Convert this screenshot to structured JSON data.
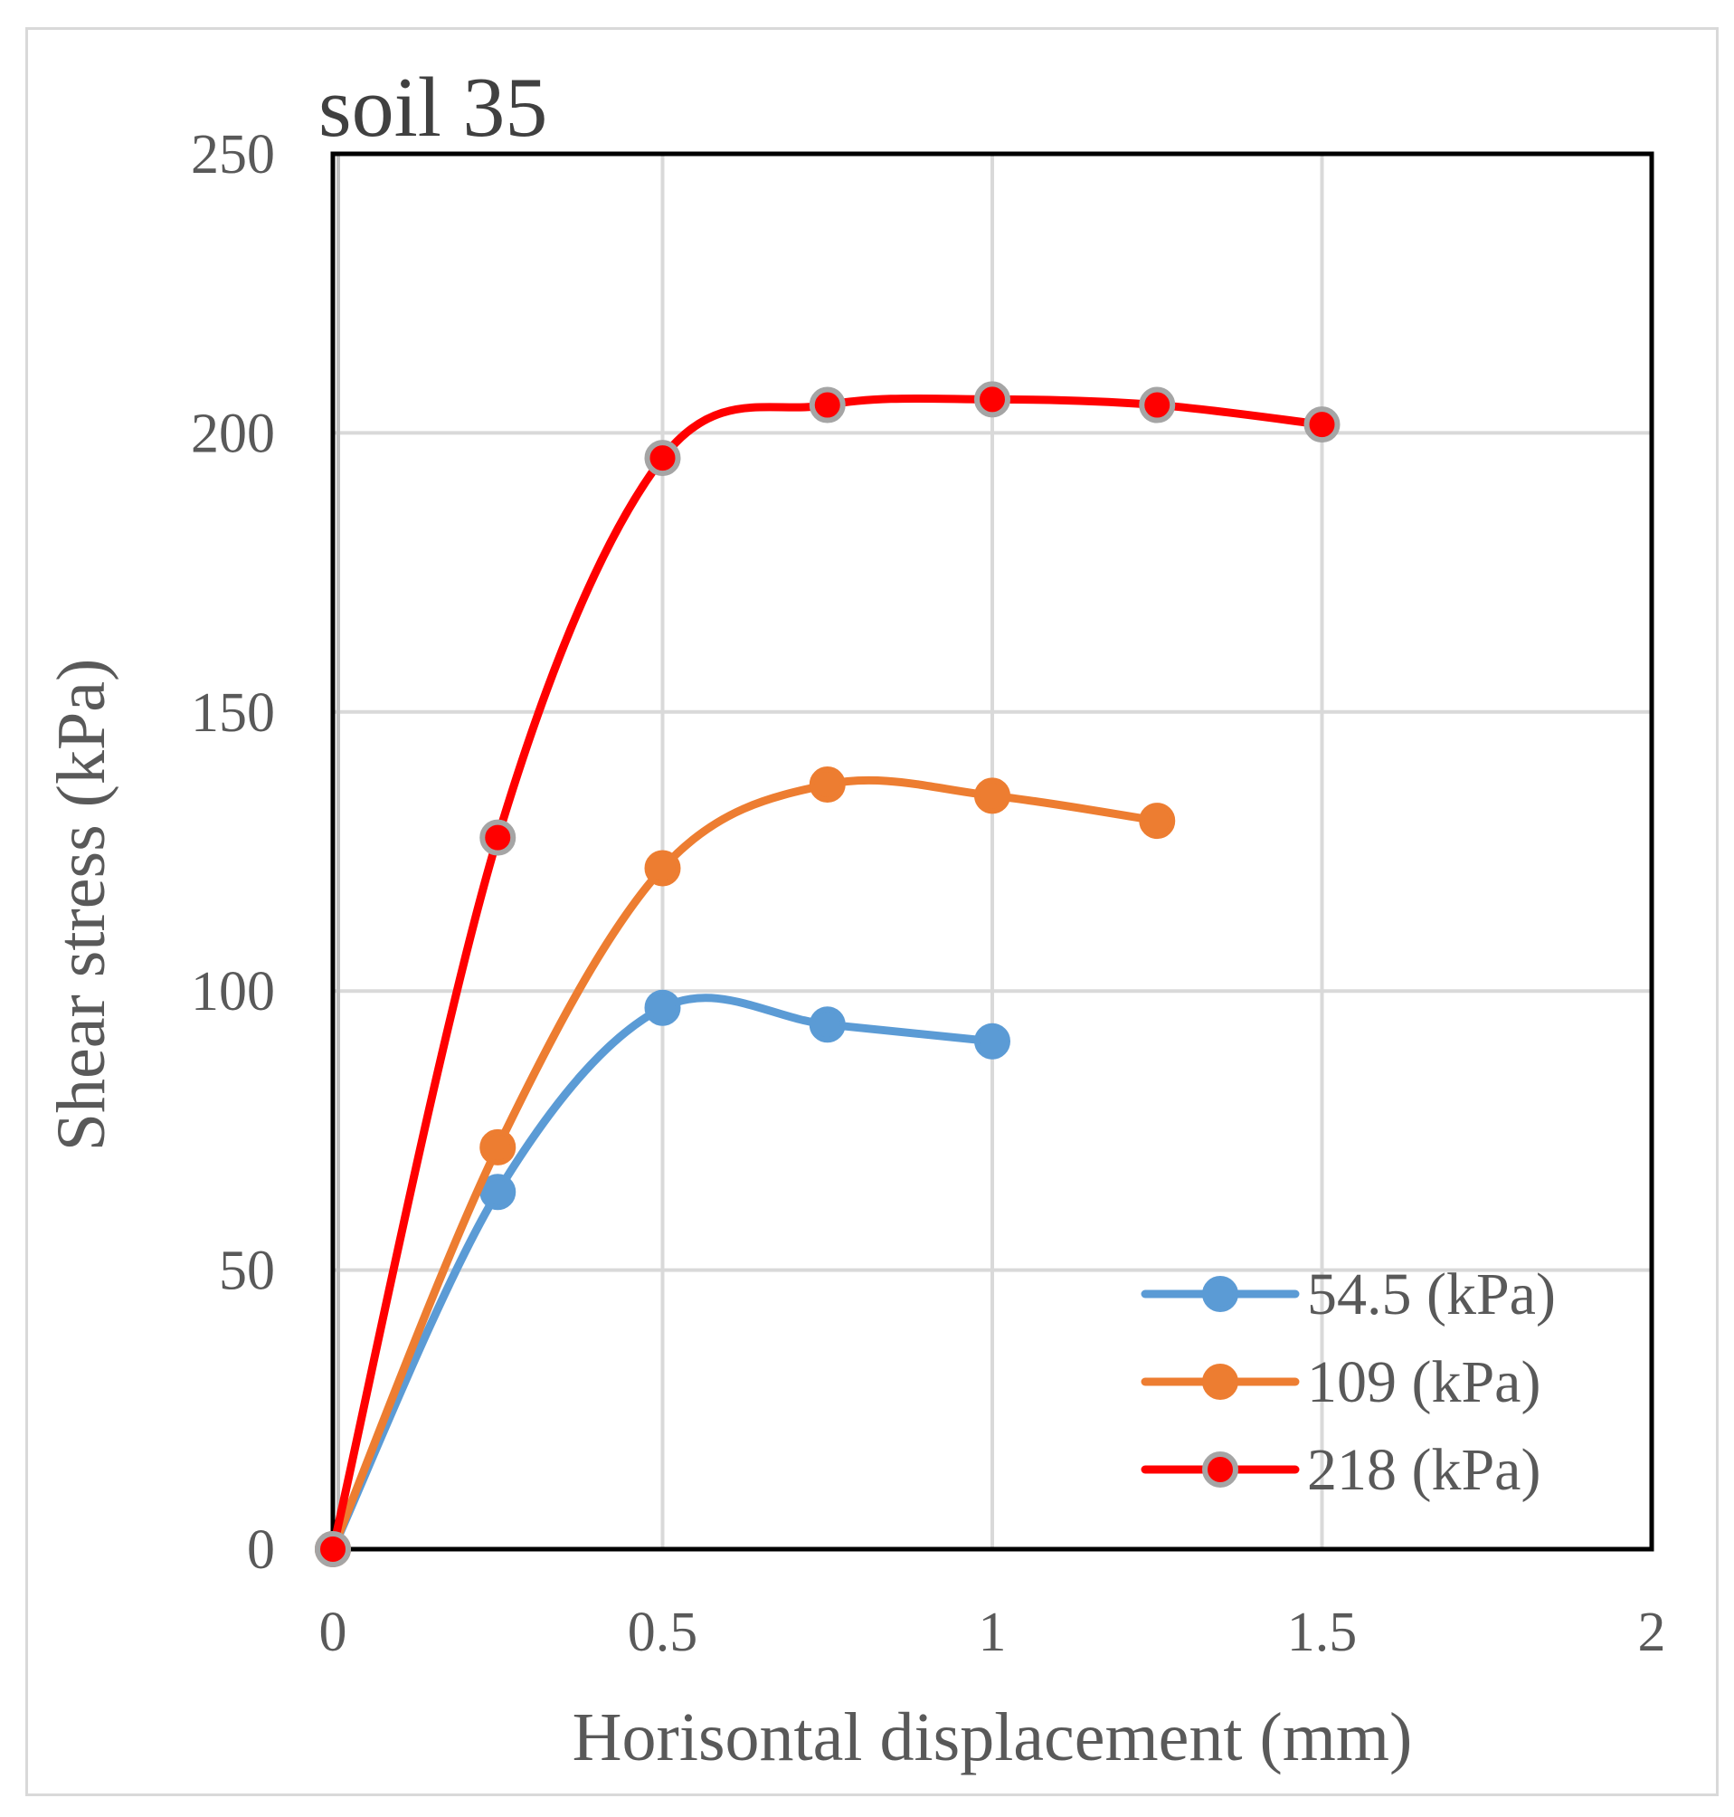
{
  "chart_data": {
    "type": "line",
    "title": "soil 35",
    "xlabel": "Horisontal displacement (mm)",
    "ylabel": "Shear stress (kPa)",
    "xlim": [
      0,
      2
    ],
    "ylim": [
      0,
      250
    ],
    "xticks": [
      0,
      0.5,
      1,
      1.5,
      2
    ],
    "xtick_labels": [
      "0",
      "0.5",
      "1",
      "1.5",
      "2"
    ],
    "yticks": [
      0,
      50,
      100,
      150,
      200,
      250
    ],
    "ytick_labels": [
      "0",
      "50",
      "100",
      "150",
      "200",
      "250"
    ],
    "grid": true,
    "smooth": true,
    "legend_position": "bottom-right",
    "series": [
      {
        "name": "54.5 (kPa)",
        "color": "#5b9bd5",
        "marker_fill": "#5b9bd5",
        "marker_stroke": "#5b9bd5",
        "x": [
          0,
          0.25,
          0.5,
          0.75,
          1
        ],
        "y": [
          0,
          64,
          97,
          94,
          91
        ]
      },
      {
        "name": "109 (kPa)",
        "color": "#ed7d31",
        "marker_fill": "#ed7d31",
        "marker_stroke": "#ed7d31",
        "x": [
          0,
          0.25,
          0.5,
          0.75,
          1,
          1.25
        ],
        "y": [
          0,
          72,
          122,
          137,
          135,
          130.5
        ]
      },
      {
        "name": "218 (kPa)",
        "color": "#ff0000",
        "marker_fill": "#ff0000",
        "marker_stroke": "#a5a5a5",
        "x": [
          0,
          0.25,
          0.5,
          0.75,
          1,
          1.25,
          1.5
        ],
        "y": [
          0,
          127.5,
          195.5,
          205,
          206,
          205,
          201.5
        ]
      }
    ]
  }
}
